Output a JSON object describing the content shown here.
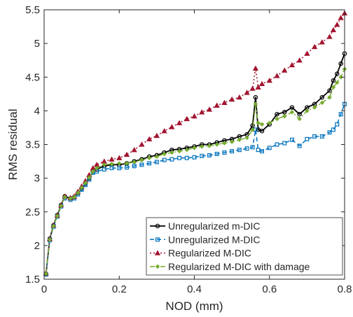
{
  "chart_data": {
    "type": "line",
    "xlabel": "NOD (mm)",
    "ylabel": "RMS residual",
    "xlim": [
      0,
      0.8
    ],
    "ylim": [
      1.5,
      5.5
    ],
    "xticks": [
      0,
      0.2,
      0.4,
      0.6,
      0.8
    ],
    "xtick_labels": [
      "0",
      "0.2",
      "0.4",
      "0.6",
      "0.8"
    ],
    "yticks": [
      1.5,
      2,
      2.5,
      3,
      3.5,
      4,
      4.5,
      5,
      5.5
    ],
    "ytick_labels": [
      "1.5",
      "2",
      "2.5",
      "3",
      "3.5",
      "4",
      "4.5",
      "5",
      "5.5"
    ],
    "grid": false,
    "legend_position": "bottom-right",
    "series": [
      {
        "name": "Unregularized m-DIC",
        "color": "#000000",
        "line_style": "solid",
        "marker": "circle",
        "x": [
          0.005,
          0.015,
          0.025,
          0.035,
          0.045,
          0.055,
          0.07,
          0.08,
          0.09,
          0.1,
          0.11,
          0.12,
          0.13,
          0.14,
          0.16,
          0.18,
          0.2,
          0.22,
          0.24,
          0.26,
          0.28,
          0.3,
          0.32,
          0.34,
          0.36,
          0.38,
          0.4,
          0.42,
          0.44,
          0.46,
          0.48,
          0.5,
          0.52,
          0.54,
          0.555,
          0.563,
          0.57,
          0.58,
          0.6,
          0.62,
          0.64,
          0.66,
          0.68,
          0.7,
          0.72,
          0.74,
          0.76,
          0.77,
          0.78,
          0.79,
          0.8
        ],
        "y": [
          1.58,
          2.1,
          2.3,
          2.45,
          2.6,
          2.73,
          2.7,
          2.72,
          2.78,
          2.85,
          2.92,
          3.0,
          3.1,
          3.13,
          3.18,
          3.2,
          3.2,
          3.22,
          3.25,
          3.28,
          3.32,
          3.34,
          3.38,
          3.42,
          3.43,
          3.45,
          3.47,
          3.5,
          3.5,
          3.53,
          3.56,
          3.58,
          3.62,
          3.65,
          3.78,
          4.2,
          3.72,
          3.7,
          3.8,
          3.95,
          3.98,
          4.05,
          3.95,
          4.05,
          4.1,
          4.2,
          4.3,
          4.45,
          4.55,
          4.7,
          4.85
        ]
      },
      {
        "name": "Unregularized M-DIC",
        "color": "#0072BD",
        "line_style": "dashed",
        "marker": "square",
        "x": [
          0.005,
          0.015,
          0.025,
          0.035,
          0.045,
          0.055,
          0.07,
          0.08,
          0.09,
          0.1,
          0.11,
          0.12,
          0.13,
          0.14,
          0.16,
          0.18,
          0.2,
          0.22,
          0.24,
          0.26,
          0.28,
          0.3,
          0.32,
          0.34,
          0.36,
          0.38,
          0.4,
          0.42,
          0.44,
          0.46,
          0.48,
          0.5,
          0.52,
          0.54,
          0.555,
          0.563,
          0.57,
          0.58,
          0.6,
          0.62,
          0.64,
          0.66,
          0.68,
          0.7,
          0.72,
          0.74,
          0.76,
          0.77,
          0.78,
          0.79,
          0.8
        ],
        "y": [
          1.57,
          2.08,
          2.28,
          2.43,
          2.58,
          2.7,
          2.68,
          2.7,
          2.76,
          2.83,
          2.9,
          2.98,
          3.08,
          3.1,
          3.13,
          3.15,
          3.15,
          3.16,
          3.18,
          3.2,
          3.22,
          3.24,
          3.27,
          3.28,
          3.3,
          3.3,
          3.31,
          3.33,
          3.34,
          3.36,
          3.38,
          3.4,
          3.42,
          3.44,
          3.46,
          3.72,
          3.42,
          3.4,
          3.45,
          3.5,
          3.52,
          3.57,
          3.48,
          3.58,
          3.62,
          3.62,
          3.68,
          3.72,
          3.8,
          3.95,
          4.1
        ]
      },
      {
        "name": "Regularized M-DIC",
        "color": "#A2142F",
        "line_style": "dotted",
        "marker": "triangle",
        "x": [
          0.005,
          0.015,
          0.025,
          0.035,
          0.045,
          0.055,
          0.07,
          0.08,
          0.09,
          0.1,
          0.11,
          0.12,
          0.13,
          0.14,
          0.16,
          0.18,
          0.2,
          0.22,
          0.24,
          0.26,
          0.28,
          0.3,
          0.32,
          0.34,
          0.36,
          0.38,
          0.4,
          0.42,
          0.44,
          0.46,
          0.48,
          0.5,
          0.52,
          0.54,
          0.555,
          0.563,
          0.57,
          0.58,
          0.6,
          0.62,
          0.64,
          0.66,
          0.68,
          0.7,
          0.72,
          0.74,
          0.76,
          0.77,
          0.78,
          0.79,
          0.8
        ],
        "y": [
          1.59,
          2.1,
          2.3,
          2.45,
          2.6,
          2.73,
          2.71,
          2.73,
          2.8,
          2.88,
          2.96,
          3.05,
          3.15,
          3.2,
          3.25,
          3.28,
          3.3,
          3.35,
          3.42,
          3.5,
          3.58,
          3.63,
          3.7,
          3.76,
          3.82,
          3.88,
          3.92,
          3.98,
          4.02,
          4.08,
          4.12,
          4.17,
          4.2,
          4.27,
          4.33,
          4.63,
          4.35,
          4.4,
          4.45,
          4.52,
          4.6,
          4.68,
          4.75,
          4.85,
          4.95,
          5.02,
          5.1,
          5.2,
          5.28,
          5.38,
          5.45
        ]
      },
      {
        "name": "Regularized M-DIC with damage",
        "color": "#77AC30",
        "line_style": "dashdot",
        "marker": "diamond",
        "x": [
          0.005,
          0.015,
          0.025,
          0.035,
          0.045,
          0.055,
          0.07,
          0.08,
          0.09,
          0.1,
          0.11,
          0.12,
          0.13,
          0.14,
          0.16,
          0.18,
          0.2,
          0.22,
          0.24,
          0.26,
          0.28,
          0.3,
          0.32,
          0.34,
          0.36,
          0.38,
          0.4,
          0.42,
          0.44,
          0.46,
          0.48,
          0.5,
          0.52,
          0.54,
          0.555,
          0.563,
          0.57,
          0.58,
          0.6,
          0.62,
          0.64,
          0.66,
          0.68,
          0.7,
          0.72,
          0.74,
          0.76,
          0.77,
          0.78,
          0.79,
          0.8
        ],
        "y": [
          1.58,
          2.09,
          2.29,
          2.44,
          2.59,
          2.72,
          2.7,
          2.72,
          2.78,
          2.86,
          2.93,
          3.01,
          3.1,
          3.15,
          3.2,
          3.21,
          3.22,
          3.22,
          3.24,
          3.27,
          3.3,
          3.32,
          3.36,
          3.38,
          3.4,
          3.42,
          3.45,
          3.47,
          3.48,
          3.5,
          3.52,
          3.54,
          3.57,
          3.6,
          3.72,
          4.1,
          3.82,
          3.8,
          3.82,
          3.88,
          3.92,
          3.98,
          3.88,
          4.0,
          4.05,
          4.12,
          4.2,
          4.35,
          4.42,
          4.5,
          4.62
        ]
      }
    ]
  }
}
